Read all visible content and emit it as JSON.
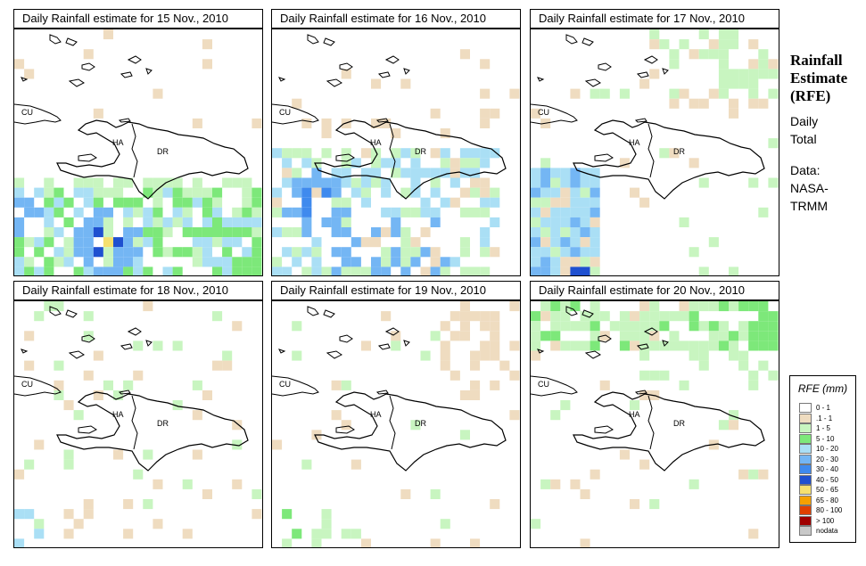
{
  "panels": [
    {
      "title": "Daily Rainfall estimate for  15 Nov., 2010"
    },
    {
      "title": "Daily Rainfall estimate for  16 Nov., 2010"
    },
    {
      "title": "Daily Rainfall estimate for  17 Nov., 2010"
    },
    {
      "title": "Daily Rainfall estimate for  18 Nov., 2010"
    },
    {
      "title": "Daily Rainfall estimate for  19 Nov., 2010"
    },
    {
      "title": "Daily Rainfall estimate for  20 Nov., 2010"
    }
  ],
  "map_labels": {
    "cuba": "CU",
    "haiti": "HA",
    "dominican_republic": "DR"
  },
  "side": {
    "title_line1": "Rainfall",
    "title_line2": "Estimate",
    "title_line3": "(RFE)",
    "desc_line1": "Daily",
    "desc_line2": "Total",
    "data_line1": "Data:",
    "data_line2": "NASA-",
    "data_line3": "TRMM"
  },
  "legend": {
    "title": "RFE (mm)",
    "items": [
      {
        "label": "0 - 1",
        "color": "#ffffff"
      },
      {
        "label": ".1 - 1",
        "color": "#efdcc0"
      },
      {
        "label": "1 - 5",
        "color": "#c8f5c0"
      },
      {
        "label": "5 - 10",
        "color": "#7de87a"
      },
      {
        "label": "10 - 20",
        "color": "#aadff5"
      },
      {
        "label": "20 - 30",
        "color": "#74b6f4"
      },
      {
        "label": "30 - 40",
        "color": "#3f8aee"
      },
      {
        "label": "40 - 50",
        "color": "#1f50d0"
      },
      {
        "label": "50 - 65",
        "color": "#f5e070"
      },
      {
        "label": "65 - 80",
        "color": "#f5a000"
      },
      {
        "label": "80 - 100",
        "color": "#e04000"
      },
      {
        "label": "> 100",
        "color": "#a00000"
      },
      {
        "label": "nodata",
        "color": "#c8c8c8"
      }
    ]
  }
}
